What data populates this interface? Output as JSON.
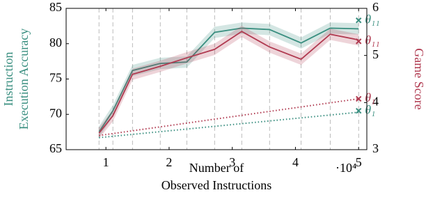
{
  "chart_data": {
    "type": "line",
    "xlabel": [
      "Number of",
      "Observed Instructions"
    ],
    "x_multiplier": "·10⁴",
    "ylabel": [
      "Instruction",
      "Execution Accuracy"
    ],
    "y2label": "Game Score",
    "xlim": [
      0.37,
      5.13
    ],
    "xticks": [
      1,
      2,
      3,
      4,
      5
    ],
    "ylim": [
      65,
      85
    ],
    "yticks": [
      65,
      70,
      75,
      80,
      85
    ],
    "y2lim": [
      3,
      6
    ],
    "y2ticks": [
      3,
      4,
      5,
      6
    ],
    "ylabel_color": "#3a8f80",
    "y2label_color": "#b03a50",
    "series": [
      {
        "color": "#3a8f80",
        "style": "solid",
        "x": [
          0.89,
          1.11,
          1.42,
          1.86,
          2.28,
          2.72,
          3.15,
          3.59,
          4.09,
          4.55,
          5.0
        ],
        "values": [
          67.5,
          70.5,
          76.2,
          77.2,
          77.4,
          81.6,
          82.2,
          82.0,
          80.1,
          82.2,
          82.1
        ],
        "error": [
          0.8,
          0.8,
          0.8,
          0.8,
          0.8,
          0.8,
          0.8,
          0.8,
          0.8,
          0.8,
          0.8
        ]
      },
      {
        "color": "#b03a50",
        "style": "solid",
        "axis": "y2",
        "x": [
          0.89,
          1.11,
          1.42,
          1.86,
          2.28,
          2.72,
          3.15,
          3.59,
          4.09,
          4.55,
          5.0
        ],
        "values": [
          3.35,
          3.72,
          4.6,
          4.77,
          4.95,
          5.13,
          5.51,
          5.18,
          4.92,
          5.45,
          5.33
        ],
        "error": [
          0.12,
          0.12,
          0.12,
          0.12,
          0.12,
          0.12,
          0.12,
          0.12,
          0.12,
          0.12,
          0.12
        ]
      },
      {
        "color": "#3a8f80",
        "style": "dotted",
        "x": [
          0.89,
          5.0
        ],
        "values": [
          66.7,
          70.3
        ]
      },
      {
        "color": "#b03a50",
        "style": "dotted",
        "axis": "y2",
        "x": [
          0.89,
          5.0
        ],
        "values": [
          3.3,
          4.08
        ]
      }
    ],
    "markers": [
      {
        "x": 5.0,
        "y": 83.3,
        "text": "θ₁₁",
        "color": "#3a8f80"
      },
      {
        "x": 5.0,
        "y": 5.3,
        "axis": "y2",
        "text": "θ₁₁",
        "color": "#b03a50"
      },
      {
        "x": 5.0,
        "y": 4.08,
        "axis": "y2",
        "text": "θ₁",
        "color": "#b03a50"
      },
      {
        "x": 5.0,
        "y": 70.5,
        "text": "θ₁",
        "color": "#3a8f80"
      }
    ]
  }
}
